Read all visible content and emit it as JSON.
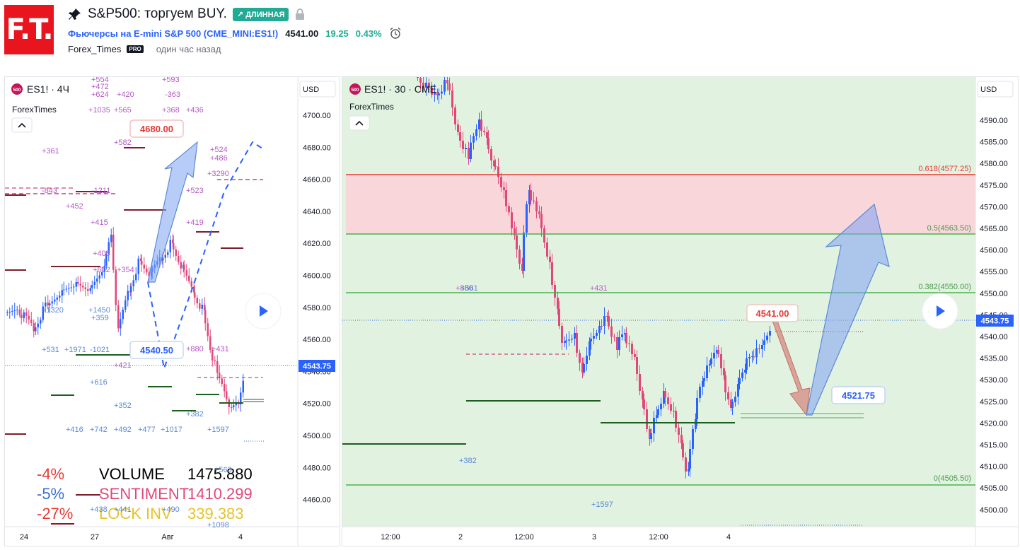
{
  "header": {
    "logo_text": "F.T.",
    "pin_icon": "pin-icon",
    "title": "S&P500: торгуем BUY.",
    "badge": "↗ ДЛИННАЯ",
    "lock_icon": "lock-icon",
    "instrument": "Фьючерсы на E-mini S&P 500 (CME_MINI:ES1!)",
    "price": "4541.00",
    "change": "19.25",
    "change_pct": "0.43%",
    "alarm_icon": "alarm-clock-icon",
    "author": "Forex_Times",
    "pro_badge": "PRO",
    "time_ago": "один час назад"
  },
  "left_chart": {
    "symbol_badge": "500",
    "symbol": "ES1! · 4Ч",
    "source": "ForexTimes",
    "currency": "USD",
    "last_price": "4543.75",
    "y_ticks": [
      "4700.00",
      "4680.00",
      "4660.00",
      "4640.00",
      "4620.00",
      "4600.00",
      "4580.00",
      "4560.00",
      "4540.00",
      "4520.00",
      "4500.00",
      "4480.00",
      "4460.00"
    ],
    "x_ticks": [
      "24",
      "27",
      "Авг",
      "4"
    ],
    "target_label": "4680.00",
    "entry_label": "4540.50",
    "labels_magenta": [
      "+554",
      "+472",
      "+624",
      "+593",
      "+420",
      "-363",
      "+1035",
      "+565",
      "+368",
      "+436",
      "+582",
      "+361",
      "+524",
      "+486",
      "+3290",
      "-843",
      "-1211",
      "+523",
      "+452",
      "+415",
      "+419",
      "+405",
      "+602",
      "+354",
      "+880",
      "+431",
      "+421"
    ],
    "labels_blue": [
      "+1320",
      "+1450",
      "+359",
      "+531",
      "+1971",
      "-1021",
      "+616",
      "+352",
      "+382",
      "+416",
      "+742",
      "+492",
      "+477",
      "+1017",
      "+1597",
      "+563",
      "+438",
      "+441",
      "+490",
      "+1098"
    ],
    "stats": [
      {
        "pct": "-4%",
        "name": "VOLUME",
        "value": "1475.880"
      },
      {
        "pct": "-5%",
        "name": "SENTIMENT",
        "value": "1410.299"
      },
      {
        "pct": "-27%",
        "name": "LOCK INV",
        "value": "339.383"
      }
    ],
    "stat_colors": {
      "pct1": "#e53935",
      "pct2": "#3f6fd1",
      "pct3": "#e53935",
      "name1": "#000000",
      "name2": "#e0487a",
      "name3": "#e6c329"
    }
  },
  "right_chart": {
    "symbol_badge": "500",
    "symbol": "ES1! · 30 · CME",
    "source": "ForexTimes",
    "currency": "USD",
    "last_price": "4543.75",
    "y_ticks": [
      "4590.00",
      "4585.00",
      "4580.00",
      "4575.00",
      "4570.00",
      "4565.00",
      "4560.00",
      "4555.00",
      "4550.00",
      "4545.00",
      "4540.00",
      "4535.00",
      "4530.00",
      "4525.00",
      "4520.00",
      "4515.00",
      "4510.00",
      "4505.00",
      "4500.00"
    ],
    "x_ticks": [
      "12:00",
      "2",
      "12:00",
      "3",
      "12:00",
      "4"
    ],
    "fib_levels": [
      "0.618(4577.25)",
      "0.5(4563.50)",
      "0.382(4550.00)",
      "0(4505.50)"
    ],
    "price_label_top": "4541.00",
    "price_label_bottom": "4521.75",
    "labels": [
      "+880",
      "+561",
      "+431",
      "+382",
      "+1597"
    ]
  }
}
